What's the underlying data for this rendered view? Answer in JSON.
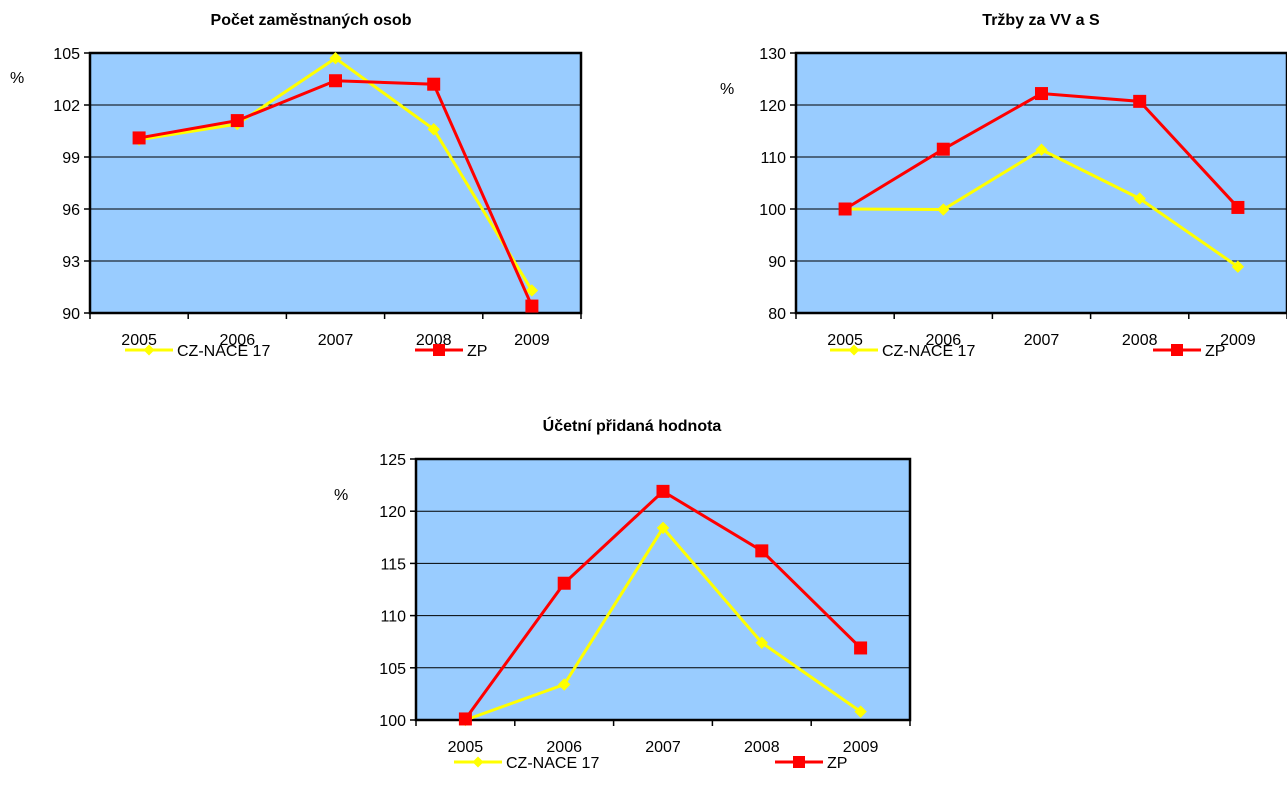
{
  "chart_data": [
    {
      "type": "line",
      "title": "Počet zaměstnaných osob",
      "ylabel": "%",
      "categories": [
        "2005",
        "2006",
        "2007",
        "2008",
        "2009"
      ],
      "ylim": [
        90,
        105
      ],
      "yticks": [
        90,
        93,
        96,
        99,
        102,
        105
      ],
      "grid": true,
      "legend_position": "bottom",
      "series": [
        {
          "name": "CZ-NACE 17",
          "values": [
            100.0,
            100.9,
            104.7,
            100.6,
            91.3
          ],
          "color": "#ffff00",
          "marker": "diamond"
        },
        {
          "name": "ZP",
          "values": [
            100.1,
            101.1,
            103.4,
            103.2,
            90.4
          ],
          "color": "#ff0000",
          "marker": "square"
        }
      ]
    },
    {
      "type": "line",
      "title": "Tržby za VV a S",
      "ylabel": "%",
      "categories": [
        "2005",
        "2006",
        "2007",
        "2008",
        "2009"
      ],
      "ylim": [
        80,
        130
      ],
      "yticks": [
        80,
        90,
        100,
        110,
        120,
        130
      ],
      "grid": true,
      "legend_position": "bottom",
      "series": [
        {
          "name": "CZ-NACE 17",
          "values": [
            100.0,
            99.9,
            111.4,
            102.0,
            88.9
          ],
          "color": "#ffff00",
          "marker": "diamond"
        },
        {
          "name": "ZP",
          "values": [
            100.0,
            111.5,
            122.2,
            120.7,
            100.3
          ],
          "color": "#ff0000",
          "marker": "square"
        }
      ]
    },
    {
      "type": "line",
      "title": "Účetní přidaná hodnota",
      "ylabel": "%",
      "categories": [
        "2005",
        "2006",
        "2007",
        "2008",
        "2009"
      ],
      "ylim": [
        100,
        125
      ],
      "yticks": [
        100,
        105,
        110,
        115,
        120,
        125
      ],
      "grid": true,
      "legend_position": "bottom",
      "series": [
        {
          "name": "CZ-NACE 17",
          "values": [
            100.0,
            103.4,
            118.4,
            107.4,
            100.8
          ],
          "color": "#ffff00",
          "marker": "diamond"
        },
        {
          "name": "ZP",
          "values": [
            100.1,
            113.1,
            121.9,
            116.2,
            106.9
          ],
          "color": "#ff0000",
          "marker": "square"
        }
      ]
    }
  ],
  "colors": {
    "plot_background": "#99ccff",
    "page_background": "#ffffff"
  }
}
